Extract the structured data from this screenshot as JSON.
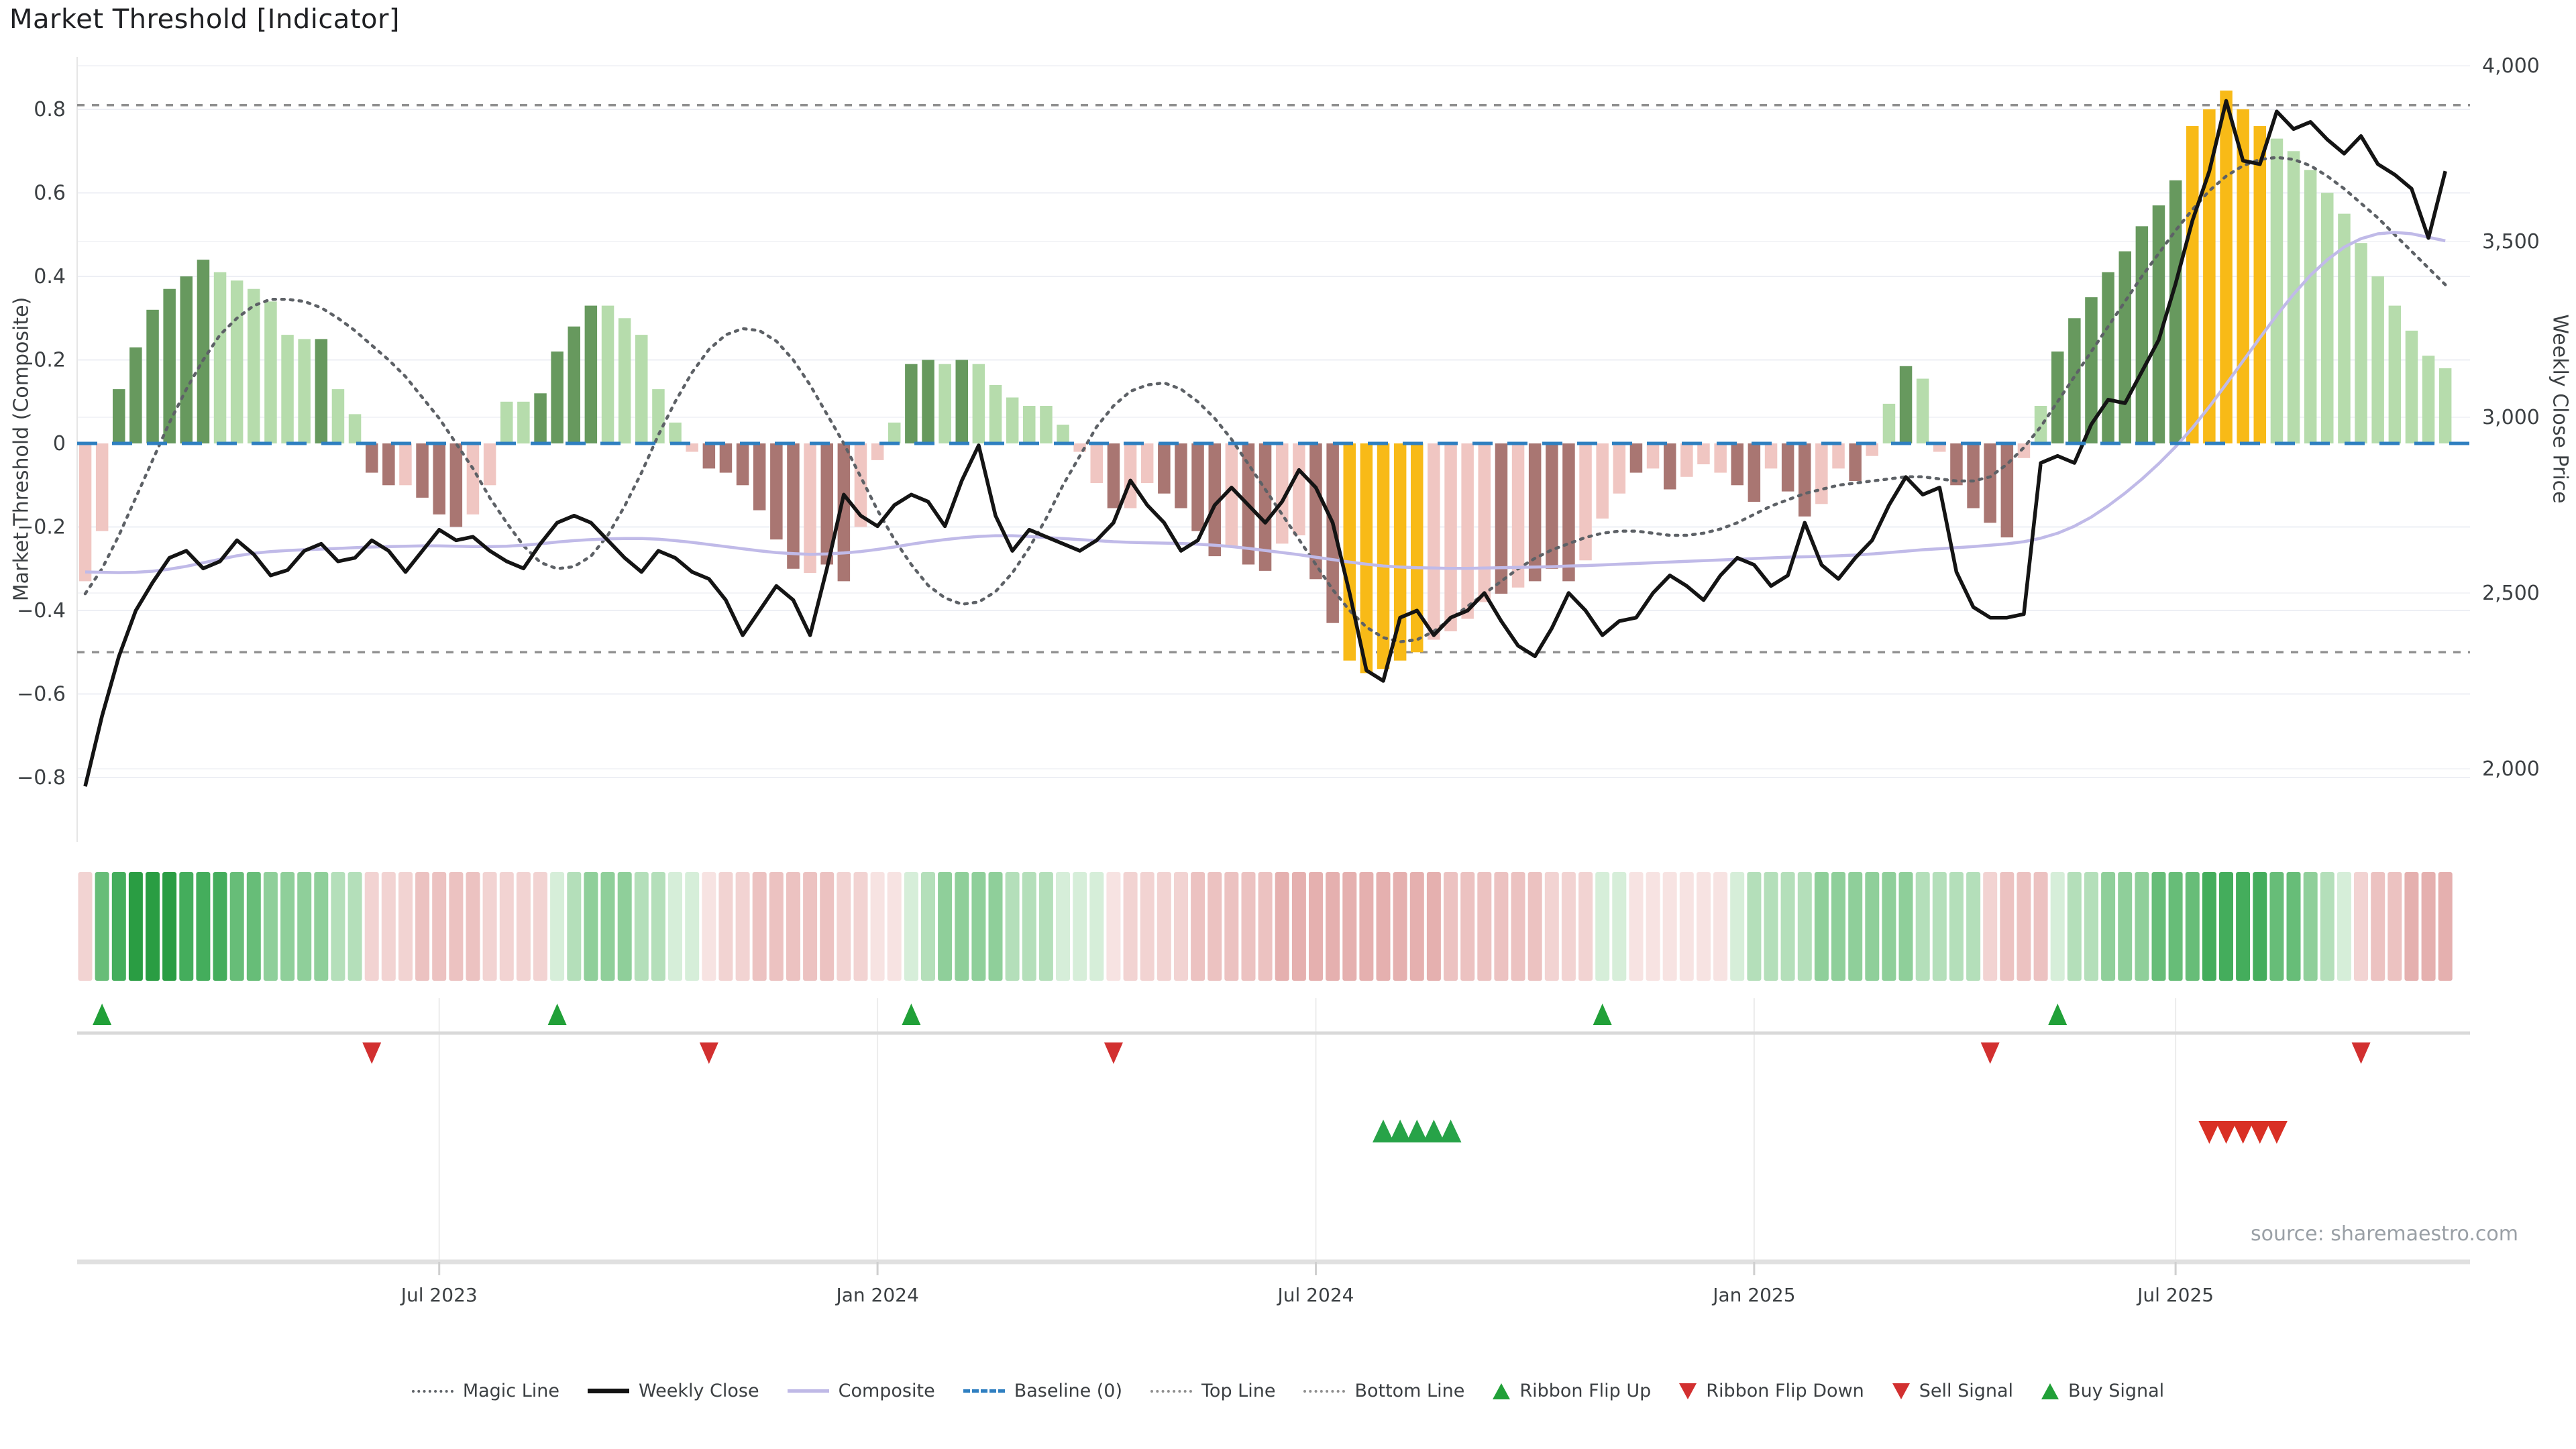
{
  "title": "Market Threshold [Indicator]",
  "source": "source: sharemaestro.com",
  "axes": {
    "left": {
      "title": "Market Threshold (Composite)",
      "tick_labels": [
        "0.8",
        "0.6",
        "0.4",
        "0.2",
        "0",
        "−0.2",
        "−0.4",
        "−0.6",
        "−0.8"
      ],
      "tick_values": [
        0.8,
        0.6,
        0.4,
        0.2,
        0,
        -0.2,
        -0.4,
        -0.6,
        -0.8
      ]
    },
    "right": {
      "title": "Weekly Close Price",
      "tick_labels": [
        "4,000",
        "3,500",
        "3,000",
        "2,500",
        "2,000"
      ],
      "tick_values": [
        4000,
        3500,
        3000,
        2500,
        2000
      ]
    }
  },
  "legend": [
    {
      "label": "Magic Line",
      "swatch": "magic"
    },
    {
      "label": "Weekly Close",
      "swatch": "weekly"
    },
    {
      "label": "Composite",
      "swatch": "composite"
    },
    {
      "label": "Baseline (0)",
      "swatch": "baseline"
    },
    {
      "label": "Top Line",
      "swatch": "topline"
    },
    {
      "label": "Bottom Line",
      "swatch": "bottomline"
    },
    {
      "label": "Ribbon Flip Up",
      "swatch": "tri-up-green"
    },
    {
      "label": "Ribbon Flip Down",
      "swatch": "tri-down-red"
    },
    {
      "label": "Sell Signal",
      "swatch": "tri-down-red"
    },
    {
      "label": "Buy Signal",
      "swatch": "tri-up-green"
    }
  ],
  "colors": {
    "bar_dark_green": "#67995e",
    "bar_light_green": "#b6dcac",
    "bar_pink": "#f0c6c2",
    "bar_dark_red": "#a97672",
    "bar_yellow": "#f8ba17",
    "magic_line": "#5d6166",
    "weekly_close": "#141414",
    "composite": "#c0bae8",
    "baseline": "#2e7fc0",
    "threshold_line": "#909090",
    "flip_up": "#21a038",
    "flip_down": "#d23030",
    "buy": "#27a348",
    "sell": "#d93025",
    "ribbon": {
      "g5": "#2a9d43",
      "g4": "#44ad5c",
      "g3": "#67bd78",
      "g2": "#8fcf9a",
      "g1": "#b4dfba",
      "g0": "#d6eed9",
      "p0": "#f7e3e2",
      "p1": "#f2d3d2",
      "p2": "#ecc2c1",
      "p3": "#e5b0af"
    }
  },
  "chart_data": {
    "type": "bar",
    "title": "Market Threshold [Indicator]",
    "xlabel": "",
    "ylabel": "Market Threshold (Composite)",
    "ylabel2": "Weekly Close Price",
    "left_range": [
      -0.92,
      0.93
    ],
    "right_range": [
      1950,
      4100
    ],
    "top_line": 0.81,
    "bottom_line": -0.5,
    "baseline": 0,
    "grid": true,
    "legend_position": "bottom",
    "x_ticks": [
      {
        "label": "Jul 2023",
        "index": 21
      },
      {
        "label": "Jan 2024",
        "index": 47
      },
      {
        "label": "Jul 2024",
        "index": 73
      },
      {
        "label": "Jan 2025",
        "index": 99
      },
      {
        "label": "Jul 2025",
        "index": 124
      }
    ],
    "bars": {
      "name": "Market Threshold (Composite)",
      "values": [
        -0.33,
        -0.21,
        0.13,
        0.23,
        0.32,
        0.37,
        0.4,
        0.44,
        0.41,
        0.39,
        0.37,
        0.34,
        0.26,
        0.25,
        0.25,
        0.13,
        0.07,
        -0.07,
        -0.1,
        -0.1,
        -0.13,
        -0.17,
        -0.2,
        -0.17,
        -0.1,
        0.1,
        0.1,
        0.12,
        0.22,
        0.28,
        0.33,
        0.33,
        0.3,
        0.26,
        0.13,
        0.05,
        -0.02,
        -0.06,
        -0.07,
        -0.1,
        -0.16,
        -0.23,
        -0.3,
        -0.31,
        -0.29,
        -0.33,
        -0.2,
        -0.04,
        0.05,
        0.19,
        0.2,
        0.19,
        0.2,
        0.19,
        0.14,
        0.11,
        0.09,
        0.09,
        0.045,
        -0.02,
        -0.095,
        -0.155,
        -0.155,
        -0.095,
        -0.12,
        -0.155,
        -0.21,
        -0.27,
        -0.245,
        -0.29,
        -0.305,
        -0.24,
        -0.22,
        -0.325,
        -0.43,
        -0.52,
        -0.55,
        -0.54,
        -0.52,
        -0.5,
        -0.47,
        -0.45,
        -0.42,
        -0.38,
        -0.36,
        -0.345,
        -0.33,
        -0.3,
        -0.33,
        -0.28,
        -0.18,
        -0.12,
        -0.07,
        -0.06,
        -0.11,
        -0.08,
        -0.05,
        -0.07,
        -0.1,
        -0.14,
        -0.06,
        -0.115,
        -0.175,
        -0.145,
        -0.06,
        -0.09,
        -0.03,
        0.095,
        0.185,
        0.155,
        -0.02,
        -0.1,
        -0.155,
        -0.19,
        -0.225,
        -0.035,
        0.09,
        0.22,
        0.3,
        0.35,
        0.41,
        0.46,
        0.52,
        0.57,
        0.63,
        0.76,
        0.8,
        0.845,
        0.8,
        0.76,
        0.73,
        0.7,
        0.655,
        0.6,
        0.55,
        0.48,
        0.4,
        0.33,
        0.27,
        0.21,
        0.18
      ],
      "color_keys": "PPGGGGGGggggggGggRRPRRRPPggGGGGgggggPRRRRRRPRRPPgGGgGggggggPPRPPRRRRPRRPPRRYYYYYPPPPRPRRRPPPRPRPPPRRPRRPPRPgGgPRRRRPgGGGGGGGGYYYYYggggggggggg"
    },
    "series": [
      {
        "name": "Weekly Close",
        "axis": "right",
        "values": [
          1950,
          2150,
          2320,
          2450,
          2530,
          2600,
          2620,
          2570,
          2590,
          2650,
          2610,
          2550,
          2565,
          2620,
          2640,
          2590,
          2600,
          2650,
          2620,
          2560,
          2620,
          2680,
          2650,
          2660,
          2620,
          2590,
          2570,
          2640,
          2700,
          2720,
          2700,
          2650,
          2600,
          2560,
          2620,
          2600,
          2560,
          2540,
          2480,
          2380,
          2450,
          2520,
          2480,
          2380,
          2570,
          2780,
          2720,
          2690,
          2750,
          2780,
          2760,
          2690,
          2820,
          2920,
          2720,
          2620,
          2680,
          2660,
          2640,
          2620,
          2650,
          2700,
          2820,
          2750,
          2700,
          2620,
          2650,
          2750,
          2800,
          2750,
          2700,
          2760,
          2850,
          2800,
          2700,
          2500,
          2280,
          2250,
          2430,
          2450,
          2380,
          2430,
          2450,
          2500,
          2420,
          2350,
          2320,
          2400,
          2500,
          2450,
          2380,
          2420,
          2430,
          2500,
          2550,
          2520,
          2480,
          2550,
          2600,
          2580,
          2520,
          2550,
          2700,
          2580,
          2540,
          2600,
          2650,
          2750,
          2830,
          2780,
          2800,
          2560,
          2460,
          2430,
          2430,
          2440,
          2870,
          2890,
          2870,
          2980,
          3050,
          3040,
          3130,
          3220,
          3380,
          3560,
          3700,
          3900,
          3730,
          3720,
          3870,
          3820,
          3840,
          3790,
          3750,
          3800,
          3720,
          3690,
          3650,
          3510,
          3700
        ]
      },
      {
        "name": "Composite",
        "axis": "right",
        "values": [
          2560,
          2559,
          2558,
          2559,
          2562,
          2568,
          2576,
          2586,
          2596,
          2606,
          2613,
          2618,
          2621,
          2623,
          2625,
          2627,
          2629,
          2631,
          2632,
          2633,
          2634,
          2634,
          2633,
          2632,
          2632,
          2633,
          2636,
          2640,
          2645,
          2649,
          2652,
          2654,
          2655,
          2655,
          2653,
          2649,
          2644,
          2638,
          2632,
          2626,
          2620,
          2615,
          2612,
          2610,
          2611,
          2614,
          2618,
          2624,
          2631,
          2639,
          2646,
          2652,
          2657,
          2661,
          2663,
          2663,
          2661,
          2658,
          2655,
          2652,
          2649,
          2646,
          2644,
          2643,
          2642,
          2641,
          2639,
          2636,
          2632,
          2627,
          2621,
          2615,
          2609,
          2602,
          2595,
          2588,
          2582,
          2577,
          2574,
          2572,
          2571,
          2570,
          2570,
          2571,
          2572,
          2573,
          2574,
          2575,
          2577,
          2578,
          2580,
          2582,
          2584,
          2586,
          2588,
          2590,
          2592,
          2594,
          2596,
          2598,
          2600,
          2602,
          2603,
          2604,
          2606,
          2608,
          2611,
          2615,
          2619,
          2623,
          2626,
          2629,
          2632,
          2636,
          2640,
          2646,
          2656,
          2670,
          2690,
          2716,
          2748,
          2784,
          2824,
          2868,
          2916,
          2970,
          3030,
          3094,
          3160,
          3226,
          3290,
          3350,
          3404,
          3448,
          3484,
          3508,
          3522,
          3526,
          3522,
          3512,
          3502
        ]
      },
      {
        "name": "Magic Line",
        "axis": "left",
        "values": [
          -0.36,
          -0.3,
          -0.22,
          -0.13,
          -0.04,
          0.05,
          0.13,
          0.2,
          0.26,
          0.3,
          0.33,
          0.345,
          0.345,
          0.34,
          0.325,
          0.3,
          0.27,
          0.235,
          0.2,
          0.16,
          0.11,
          0.06,
          0.0,
          -0.06,
          -0.13,
          -0.19,
          -0.245,
          -0.285,
          -0.3,
          -0.295,
          -0.27,
          -0.22,
          -0.15,
          -0.07,
          0.02,
          0.1,
          0.17,
          0.225,
          0.26,
          0.275,
          0.27,
          0.245,
          0.2,
          0.14,
          0.07,
          0.0,
          -0.08,
          -0.16,
          -0.23,
          -0.29,
          -0.34,
          -0.37,
          -0.385,
          -0.38,
          -0.355,
          -0.31,
          -0.25,
          -0.18,
          -0.1,
          -0.03,
          0.04,
          0.09,
          0.125,
          0.14,
          0.145,
          0.13,
          0.1,
          0.06,
          0.01,
          -0.05,
          -0.11,
          -0.17,
          -0.23,
          -0.29,
          -0.35,
          -0.4,
          -0.44,
          -0.465,
          -0.475,
          -0.47,
          -0.45,
          -0.42,
          -0.39,
          -0.36,
          -0.33,
          -0.3,
          -0.275,
          -0.255,
          -0.24,
          -0.225,
          -0.215,
          -0.21,
          -0.21,
          -0.215,
          -0.22,
          -0.22,
          -0.215,
          -0.205,
          -0.19,
          -0.17,
          -0.15,
          -0.135,
          -0.12,
          -0.11,
          -0.1,
          -0.095,
          -0.09,
          -0.085,
          -0.08,
          -0.08,
          -0.085,
          -0.09,
          -0.09,
          -0.08,
          -0.05,
          -0.01,
          0.04,
          0.1,
          0.16,
          0.22,
          0.28,
          0.34,
          0.4,
          0.455,
          0.51,
          0.56,
          0.605,
          0.64,
          0.665,
          0.68,
          0.685,
          0.68,
          0.665,
          0.64,
          0.61,
          0.575,
          0.54,
          0.5,
          0.46,
          0.42,
          0.38
        ]
      }
    ],
    "ribbon": "p1,g3,g4,g5,g5,g5,g4,g4,g4,g3,g3,g2,g2,g2,g2,g1,g1,p1,p1,p1,p2,p2,p2,p2,p1,p1,p1,p1,g0,g1,g2,g2,g2,g1,g1,g0,g0,p0,p1,p1,p2,p2,p2,p2,p2,p1,p1,p0,p0,g0,g1,g2,g2,g2,g2,g1,g1,g1,g0,g0,g0,p0,p1,p1,p1,p1,p2,p2,p2,p2,p2,p3,p3,p3,p3,p3,p3,p3,p3,p3,p3,p2,p2,p2,p2,p2,p2,p1,p1,p1,g0,g0,p0,p0,p0,p0,p0,p0,g0,g1,g1,g1,g1,g2,g2,g2,g2,g2,g2,g1,g1,g1,g1,p1,p2,p2,p2,g0,g1,g1,g2,g2,g2,g3,g3,g3,g4,g4,g4,g4,g3,g3,g2,g1,g0,p1,p2,p2,p3,p3,p3",
    "markers": {
      "ribbon_flip_up": [
        1,
        28,
        49,
        90,
        117
      ],
      "ribbon_flip_down": [
        17,
        37,
        61,
        113,
        135
      ],
      "buy_signal": [
        77,
        78,
        79,
        80,
        81
      ],
      "sell_signal": [
        126,
        127,
        128,
        129,
        130
      ]
    }
  }
}
